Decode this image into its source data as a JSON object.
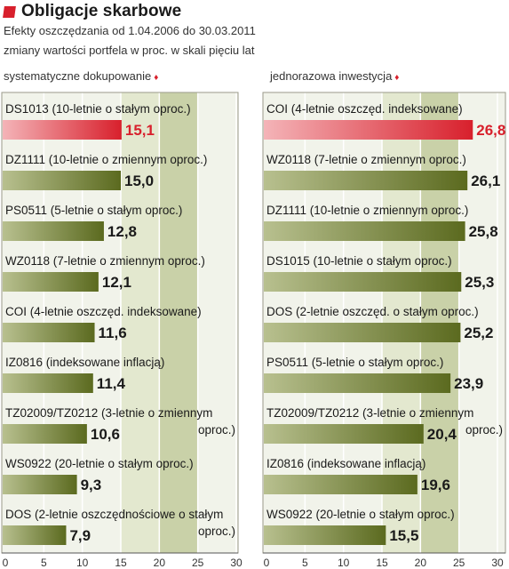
{
  "header": {
    "title": "Obligacje skarbowe",
    "subtitle": "Efekty oszczędzania od 1.04.2006 do 30.03.2011",
    "subtitle2": "zmiany wartości portfela w proc. w skali pięciu lat",
    "arrow_glyph": "♦"
  },
  "colors": {
    "highlight": "#d8202c",
    "bar": "#5b6a1f",
    "zone_light": "#f1f3ea",
    "zone_mid": "#e3e8cf",
    "zone_dark": "#c9d1a8"
  },
  "chart_data": [
    {
      "type": "bar",
      "orientation": "horizontal",
      "title": "systematyczne dokupowanie",
      "xlim": [
        0,
        30
      ],
      "xticks": [
        0,
        5,
        10,
        15,
        20,
        25,
        30
      ],
      "bars": [
        {
          "label": "DS1013 (10-letnie o stałym oproc.)",
          "value": 15.1,
          "value_label": "15,1",
          "highlight": true
        },
        {
          "label": "DZ1111 (10-letnie o zmiennym oproc.)",
          "value": 15.0,
          "value_label": "15,0",
          "highlight": false
        },
        {
          "label": "PS0511 (5-letnie o stałym oproc.)",
          "value": 12.8,
          "value_label": "12,8",
          "highlight": false
        },
        {
          "label": "WZ0118 (7-letnie o zmiennym oproc.)",
          "value": 12.1,
          "value_label": "12,1",
          "highlight": false
        },
        {
          "label": "COI (4-letnie oszczęd. indeksowane)",
          "value": 11.6,
          "value_label": "11,6",
          "highlight": false
        },
        {
          "label": "IZ0816  (indeksowane inflacją)",
          "value": 11.4,
          "value_label": "11,4",
          "highlight": false
        },
        {
          "label": "TZ02009/TZ0212 (3-letnie o zmiennym\noproc.)",
          "value": 10.6,
          "value_label": "10,6",
          "highlight": false
        },
        {
          "label": "WS0922 (20-letnie o stałym oproc.)",
          "value": 9.3,
          "value_label": "9,3",
          "highlight": false
        },
        {
          "label": "DOS (2-letnie oszczędnościowe o stałym\noproc.)",
          "value": 7.9,
          "value_label": "7,9",
          "highlight": false
        }
      ]
    },
    {
      "type": "bar",
      "orientation": "horizontal",
      "title": "jednorazowa inwestycja",
      "xlim": [
        0,
        30
      ],
      "xticks": [
        0,
        5,
        10,
        15,
        20,
        25,
        30
      ],
      "bars": [
        {
          "label": "COI (4-letnie oszczęd. indeksowane)",
          "value": 26.8,
          "value_label": "26,8",
          "highlight": true
        },
        {
          "label": "WZ0118 (7-letnie o zmiennym oproc.)",
          "value": 26.1,
          "value_label": "26,1",
          "highlight": false
        },
        {
          "label": "DZ1111 (10-letnie o zmiennym oproc.)",
          "value": 25.8,
          "value_label": "25,8",
          "highlight": false
        },
        {
          "label": "DS1015 (10-letnie o stałym oproc.)",
          "value": 25.3,
          "value_label": "25,3",
          "highlight": false
        },
        {
          "label": "DOS  (2-letnie oszczęd. o stałym oproc.)",
          "value": 25.2,
          "value_label": "25,2",
          "highlight": false
        },
        {
          "label": "PS0511 (5-letnie o stałym oproc.)",
          "value": 23.9,
          "value_label": "23,9",
          "highlight": false
        },
        {
          "label": "TZ02009/TZ0212 (3-letnie o zmiennym\noproc.)",
          "value": 20.4,
          "value_label": "20,4",
          "highlight": false
        },
        {
          "label": "IZ0816   (indeksowane inflacją)",
          "value": 19.6,
          "value_label": "19,6",
          "highlight": false
        },
        {
          "label": "WS0922 (20-letnie o stałym oproc.)",
          "value": 15.5,
          "value_label": "15,5",
          "highlight": false
        }
      ]
    }
  ]
}
